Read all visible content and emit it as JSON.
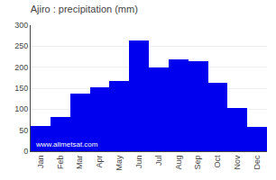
{
  "chart_data": {
    "type": "bar",
    "title": "Ajiro : precipitation (mm)",
    "categories": [
      "Jan",
      "Feb",
      "Mar",
      "Apr",
      "May",
      "Jun",
      "Jul",
      "Aug",
      "Sep",
      "Oct",
      "Nov",
      "Dec"
    ],
    "values": [
      60,
      82,
      138,
      153,
      168,
      263,
      200,
      218,
      215,
      163,
      103,
      57
    ],
    "color": "#0000ee",
    "ylim": [
      0,
      300
    ],
    "yticks": [
      0,
      50,
      100,
      150,
      200,
      250,
      300
    ],
    "grid": true,
    "annotations": [
      "www.allmetsat.com"
    ]
  }
}
